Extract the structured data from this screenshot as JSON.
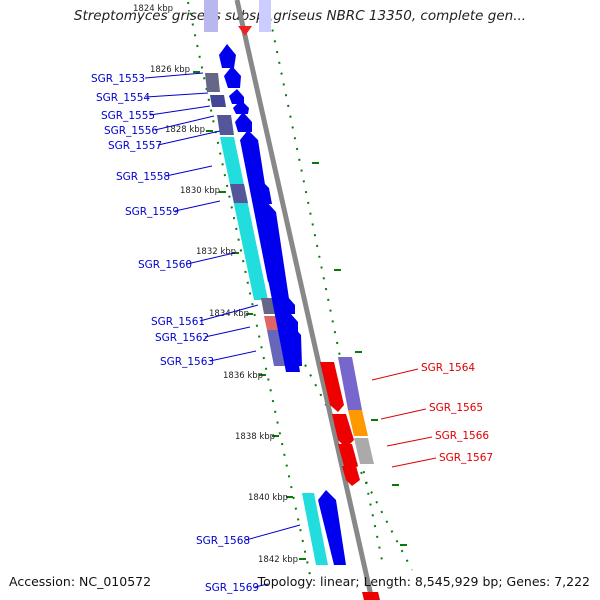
{
  "title": "Streptomyces griseus subsp. griseus NBRC 13350, complete gen...",
  "accession": "Accession: NC_010572",
  "topology": "Topology: linear; Length: 8,545,929 bp; Genes: 7,222",
  "colors": {
    "forward_label": "#0000cc",
    "reverse_label": "#dd0000",
    "axis": "#888888",
    "tick": "#0a7a0a",
    "forward_gene": "#0000ee",
    "reverse_gene": "#ee0000"
  },
  "kbp_labels": [
    "1824 kbp",
    "1826 kbp",
    "1828 kbp",
    "1830 kbp",
    "1832 kbp",
    "1834 kbp",
    "1836 kbp",
    "1838 kbp",
    "1840 kbp",
    "1842 kbp"
  ],
  "genes": {
    "forward": [
      "SGR_1553",
      "SGR_1554",
      "SGR_1555",
      "SGR_1556",
      "SGR_1557",
      "SGR_1558",
      "SGR_1559",
      "SGR_1560",
      "SGR_1561",
      "SGR_1562",
      "SGR_1563",
      "SGR_1568",
      "SGR_1569"
    ],
    "reverse": [
      "SGR_1564",
      "SGR_1565",
      "SGR_1566",
      "SGR_1567"
    ]
  }
}
